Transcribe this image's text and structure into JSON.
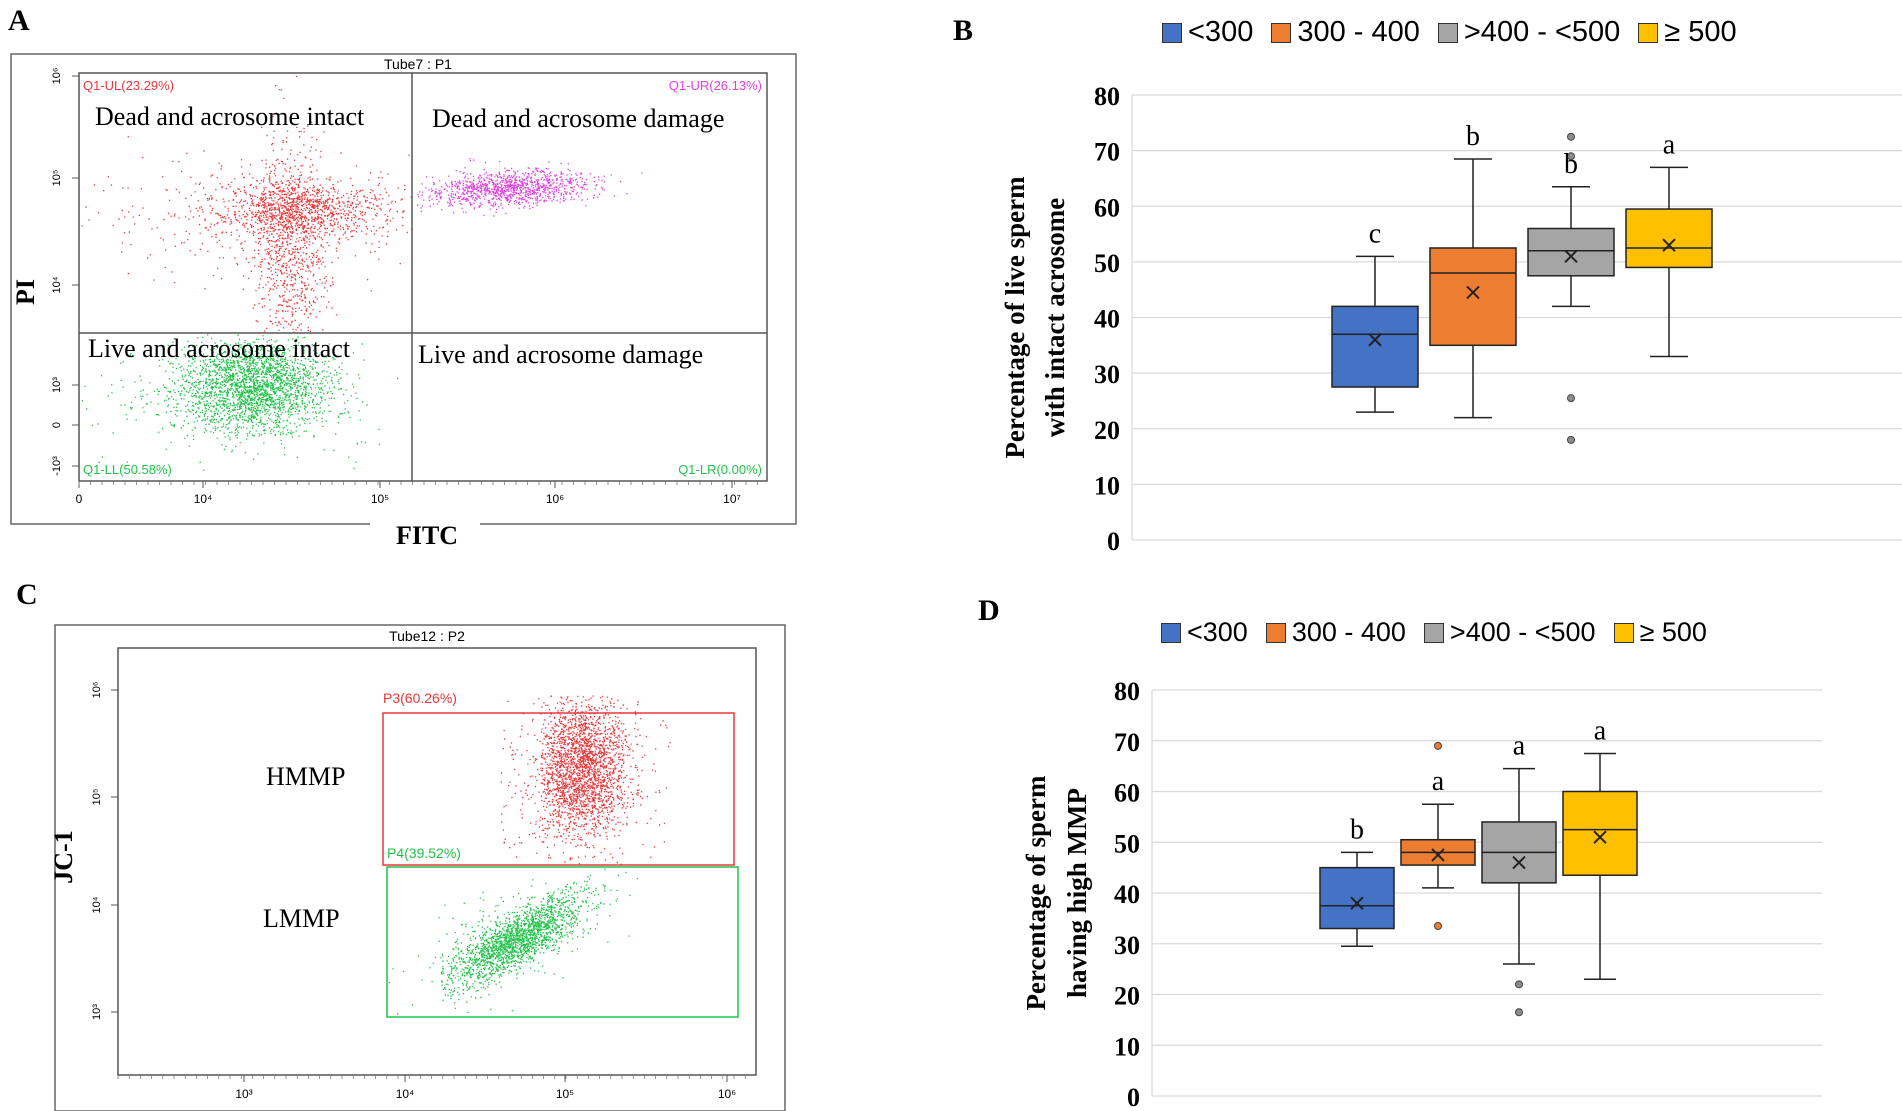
{
  "panels": {
    "a": {
      "letter": "A",
      "header": "Tube7 : P1",
      "xlabel": "FITC",
      "ylabel": "PI",
      "quadrants": {
        "ul": {
          "label": "Q1-UL(23.29%)",
          "desc": "Dead and acrosome intact",
          "color": "#e8383b"
        },
        "ur": {
          "label": "Q1-UR(26.13%)",
          "desc": "Dead and acrosome damage",
          "color": "#e040e0"
        },
        "ll": {
          "label": "Q1-LL(50.58%)",
          "desc": "Live and acrosome intact",
          "color": "#22c24a"
        },
        "lr": {
          "label": "Q1-LR(0.00%)",
          "desc": "Live and acrosome damage",
          "color": "#22c24a"
        }
      },
      "xticks": [
        "0",
        "10⁴",
        "10⁵",
        "10⁶",
        "10⁷"
      ],
      "yticks": [
        "10⁶",
        "10⁵",
        "10⁴",
        "10³",
        "0",
        "-10³"
      ]
    },
    "b": {
      "letter": "B"
    },
    "c": {
      "letter": "C",
      "header": "Tube12 : P2",
      "ylabel": "JC-1",
      "gates": {
        "p3": {
          "label": "P3(60.26%)",
          "desc": "HMMP",
          "color": "#e8383b"
        },
        "p4": {
          "label": "P4(39.52%)",
          "desc": "LMMP",
          "color": "#22c24a"
        }
      },
      "xticks": [
        "10³",
        "10⁴",
        "10⁵",
        "10⁶"
      ],
      "yticks": [
        "10⁶",
        "10⁵",
        "10⁴",
        "10³"
      ]
    },
    "d": {
      "letter": "D"
    }
  },
  "legend": [
    {
      "label": "<300",
      "color": "#4472c4"
    },
    {
      "label": "300 - 400",
      "color": "#ed7d31"
    },
    {
      "label": ">400 - <500",
      "color": "#a5a5a5"
    },
    {
      "label": "≥ 500",
      "color": "#ffc000"
    }
  ],
  "chart_data": [
    {
      "type": "box",
      "panel": "B",
      "title": "",
      "ylabel": "Percentage of live sperm with intact acrosome",
      "ylabel_lines": [
        "Percentage of live sperm",
        "with intact acrosome"
      ],
      "ylim": [
        0,
        80
      ],
      "yticks": [
        "0",
        "10",
        "20",
        "30",
        "40",
        "50",
        "60",
        "70",
        "80"
      ],
      "gridlines": true,
      "series": [
        {
          "name": "<300",
          "min": 23,
          "q1": 27.5,
          "median": 37,
          "q3": 42,
          "max": 51,
          "mean": 36,
          "outliers": [],
          "letter": "c"
        },
        {
          "name": "300 - 400",
          "min": 22,
          "q1": 35,
          "median": 48,
          "q3": 52.5,
          "max": 68.5,
          "mean": 44.5,
          "outliers": [],
          "letter": "b"
        },
        {
          "name": ">400 - <500",
          "min": 42,
          "q1": 47.5,
          "median": 52,
          "q3": 56,
          "max": 63.5,
          "mean": 51,
          "outliers": [
            72.5,
            69,
            25.5,
            18
          ],
          "letter": "b"
        },
        {
          "name": "≥ 500",
          "min": 33,
          "q1": 49,
          "median": 52.5,
          "q3": 59.5,
          "max": 67,
          "mean": 53,
          "outliers": [],
          "letter": "a"
        }
      ]
    },
    {
      "type": "box",
      "panel": "D",
      "title": "",
      "ylabel": "Percentage of sperm having high MMP",
      "ylabel_lines": [
        "Percentage of sperm",
        "having high MMP"
      ],
      "ylim": [
        0,
        80
      ],
      "yticks": [
        "0",
        "10",
        "20",
        "30",
        "40",
        "50",
        "60",
        "70",
        "80"
      ],
      "gridlines": true,
      "series": [
        {
          "name": "<300",
          "min": 29.5,
          "q1": 33,
          "median": 37.5,
          "q3": 45,
          "max": 48,
          "mean": 38,
          "outliers": [],
          "letter": "b"
        },
        {
          "name": "300 - 400",
          "min": 41,
          "q1": 45.5,
          "median": 48,
          "q3": 50.5,
          "max": 57.5,
          "mean": 47.5,
          "outliers": [
            69,
            33.5
          ],
          "letter": "a"
        },
        {
          "name": ">400 - <500",
          "min": 26,
          "q1": 42,
          "median": 48,
          "q3": 54,
          "max": 64.5,
          "mean": 46,
          "outliers": [
            22,
            16.5
          ],
          "letter": "a"
        },
        {
          "name": "≥ 500",
          "min": 23,
          "q1": 43.5,
          "median": 52.5,
          "q3": 60,
          "max": 67.5,
          "mean": 51,
          "outliers": [],
          "letter": "a"
        }
      ]
    }
  ]
}
